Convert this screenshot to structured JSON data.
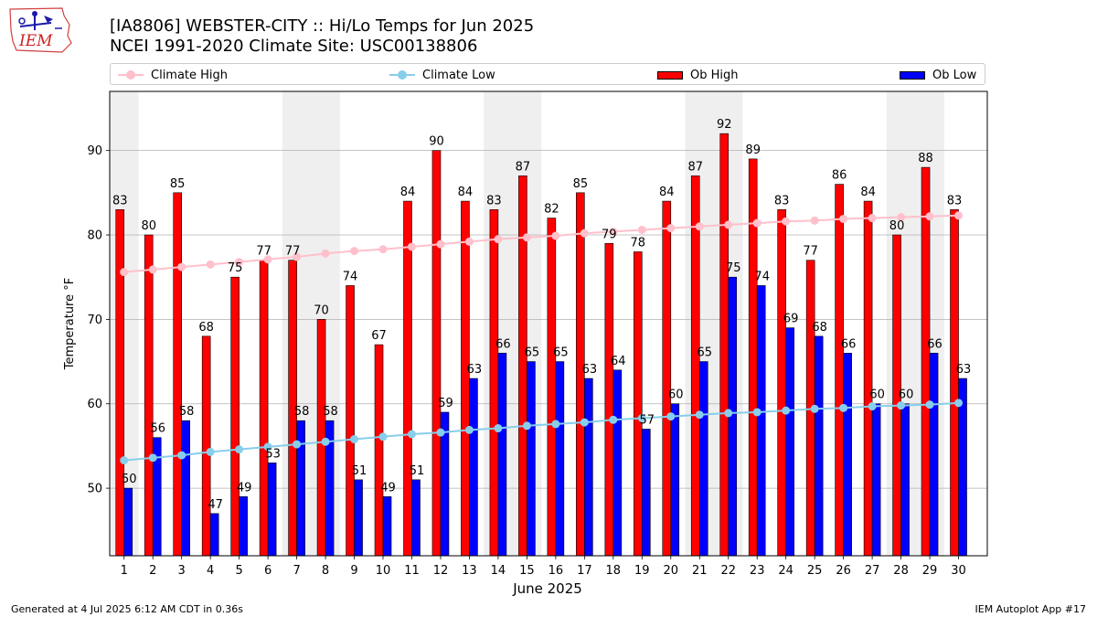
{
  "header": {
    "title_line1": "[IA8806] WEBSTER-CITY :: Hi/Lo Temps for Jun 2025",
    "title_line2": "NCEI 1991-2020 Climate Site: USC00138806",
    "logo_text": "IEM"
  },
  "legend": {
    "placement": "top",
    "items": [
      {
        "label": "Climate High",
        "kind": "line",
        "color": "#ffc0cb"
      },
      {
        "label": "Climate Low",
        "kind": "line",
        "color": "#87ceeb"
      },
      {
        "label": "Ob High",
        "kind": "bar",
        "color": "#ff0000"
      },
      {
        "label": "Ob Low",
        "kind": "bar",
        "color": "#0000ff"
      }
    ]
  },
  "footer": {
    "left": "Generated at 4 Jul 2025 6:12 AM CDT in 0.36s",
    "right": "IEM Autoplot App #17"
  },
  "chart_data": {
    "type": "bar",
    "xlabel": "June 2025",
    "ylabel": "Temperature °F",
    "ylim": [
      42,
      97
    ],
    "yticks": [
      50,
      60,
      70,
      80,
      90
    ],
    "grid": "y",
    "categories": [
      "1",
      "2",
      "3",
      "4",
      "5",
      "6",
      "7",
      "8",
      "9",
      "10",
      "11",
      "12",
      "13",
      "14",
      "15",
      "16",
      "17",
      "18",
      "19",
      "20",
      "21",
      "22",
      "23",
      "24",
      "25",
      "26",
      "27",
      "28",
      "29",
      "30"
    ],
    "weekend_shading": [
      [
        1,
        1
      ],
      [
        7,
        8
      ],
      [
        14,
        15
      ],
      [
        21,
        22
      ],
      [
        28,
        29
      ]
    ],
    "series": [
      {
        "name": "Ob High",
        "type": "bar",
        "color": "#ff0000",
        "values": [
          83,
          80,
          85,
          68,
          75,
          77,
          77,
          70,
          74,
          67,
          84,
          90,
          84,
          83,
          87,
          82,
          85,
          79,
          78,
          84,
          87,
          92,
          89,
          83,
          77,
          86,
          84,
          80,
          88,
          83
        ]
      },
      {
        "name": "Ob Low",
        "type": "bar",
        "color": "#0000ff",
        "values": [
          50,
          56,
          58,
          47,
          49,
          53,
          58,
          58,
          51,
          49,
          51,
          59,
          63,
          66,
          65,
          65,
          63,
          64,
          57,
          60,
          65,
          75,
          74,
          69,
          68,
          66,
          60,
          60,
          66,
          63
        ]
      },
      {
        "name": "Climate High",
        "type": "line",
        "color": "#ffc0cb",
        "values": [
          75.6,
          75.9,
          76.2,
          76.5,
          76.8,
          77.1,
          77.4,
          77.8,
          78.1,
          78.3,
          78.6,
          78.9,
          79.2,
          79.5,
          79.7,
          79.9,
          80.2,
          80.4,
          80.6,
          80.8,
          81.0,
          81.2,
          81.4,
          81.6,
          81.7,
          81.9,
          82.0,
          82.1,
          82.2,
          82.3
        ]
      },
      {
        "name": "Climate Low",
        "type": "line",
        "color": "#87ceeb",
        "values": [
          53.3,
          53.6,
          53.9,
          54.3,
          54.6,
          54.9,
          55.2,
          55.5,
          55.8,
          56.1,
          56.4,
          56.6,
          56.9,
          57.1,
          57.4,
          57.6,
          57.8,
          58.1,
          58.3,
          58.5,
          58.7,
          58.9,
          59.0,
          59.2,
          59.4,
          59.5,
          59.7,
          59.8,
          59.9,
          60.1
        ]
      }
    ]
  }
}
